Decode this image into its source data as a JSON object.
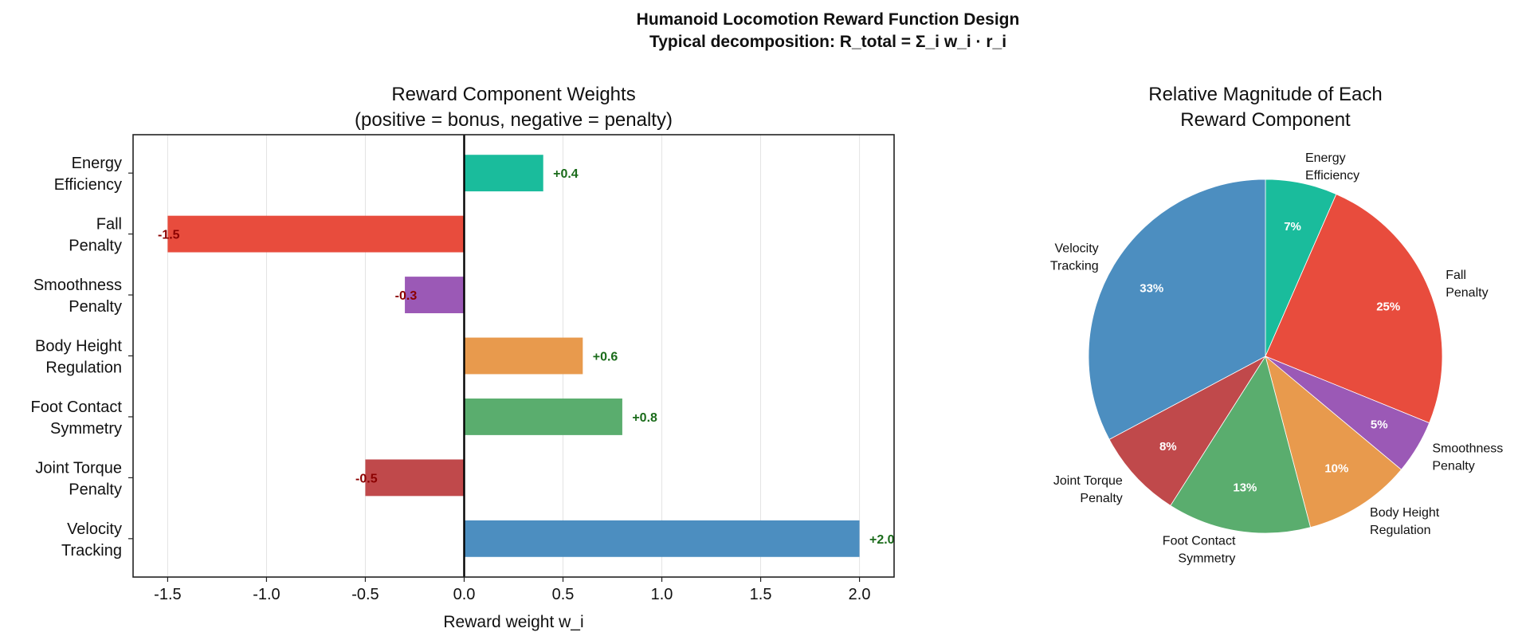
{
  "figure": {
    "title": "Humanoid Locomotion Reward Function Design",
    "subtitle": "Typical decomposition: R_total = Σ_i w_i · r_i"
  },
  "chart_data": [
    {
      "type": "bar",
      "orientation": "horizontal",
      "title": "Reward Component Weights\n(positive = bonus, negative = penalty)",
      "xlabel": "Reward weight  w_i",
      "ylabel": "",
      "xlim": [
        -1.675,
        2.175
      ],
      "xticks": [
        -1.5,
        -1.0,
        -0.5,
        0.0,
        0.5,
        1.0,
        1.5,
        2.0
      ],
      "xtick_labels": [
        "-1.5",
        "-1.0",
        "-0.5",
        "0.0",
        "0.5",
        "1.0",
        "1.5",
        "2.0"
      ],
      "grid": "x",
      "categories": [
        "Velocity\nTracking",
        "Joint Torque\nPenalty",
        "Foot Contact\nSymmetry",
        "Body Height\nRegulation",
        "Smoothness\nPenalty",
        "Fall\nPenalty",
        "Energy\nEfficiency"
      ],
      "values": [
        2.0,
        -0.5,
        0.8,
        0.6,
        -0.3,
        -1.5,
        0.4
      ],
      "data_labels": [
        "+2.0",
        "-0.5",
        "+0.8",
        "+0.6",
        "-0.3",
        "-1.5",
        "+0.4"
      ],
      "colors": [
        "#4c8ec0",
        "#c0494b",
        "#5aad6e",
        "#e89a4d",
        "#9b59b6",
        "#e84c3d",
        "#1abc9c"
      ],
      "positive_label_color": "#1a6b1a",
      "negative_label_color": "#8b0000"
    },
    {
      "type": "pie",
      "title": "Relative Magnitude of Each\nReward Component",
      "labels": [
        "Energy\nEfficiency",
        "Fall\nPenalty",
        "Smoothness\nPenalty",
        "Body Height\nRegulation",
        "Foot Contact\nSymmetry",
        "Joint Torque\nPenalty",
        "Velocity\nTracking"
      ],
      "values": [
        0.4,
        1.5,
        0.3,
        0.6,
        0.8,
        0.5,
        2.0
      ],
      "percent_labels": [
        "7%",
        "25%",
        "5%",
        "10%",
        "13%",
        "8%",
        "33%"
      ],
      "colors": [
        "#1abc9c",
        "#e84c3d",
        "#9b59b6",
        "#e89a4d",
        "#5aad6e",
        "#c0494b",
        "#4c8ec0"
      ],
      "start_angle": 90,
      "direction": "clockwise"
    }
  ]
}
